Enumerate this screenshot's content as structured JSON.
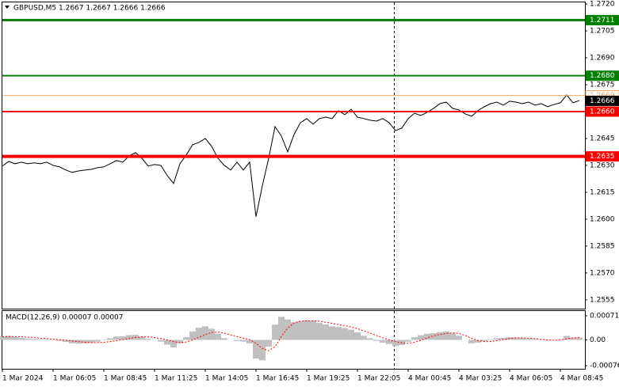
{
  "chart_data": [
    {
      "type": "line",
      "title": "GBPUSD,M5  1.2667 1.2667 1.2666 1.2666",
      "color": "#000000",
      "values": [
        1.26296,
        1.26322,
        1.26309,
        1.26318,
        1.26309,
        1.26314,
        1.26309,
        1.26318,
        1.263,
        1.26292,
        1.26274,
        1.26261,
        1.26269,
        1.26274,
        1.26278,
        1.26287,
        1.26292,
        1.26309,
        1.26327,
        1.26318,
        1.26353,
        1.26371,
        1.2634,
        1.26296,
        1.26305,
        1.263,
        1.26243,
        1.26199,
        1.26309,
        1.26358,
        1.26415,
        1.26428,
        1.2645,
        1.26406,
        1.2634,
        1.263,
        1.26274,
        1.26318,
        1.26274,
        1.26318,
        1.26014,
        1.26186,
        1.2634,
        1.26516,
        1.26464,
        1.26375,
        1.26472,
        1.26538,
        1.26561,
        1.2653,
        1.26561,
        1.26569,
        1.26561,
        1.26605,
        1.26583,
        1.26613,
        1.26569,
        1.26561,
        1.26552,
        1.26547,
        1.26561,
        1.26538,
        1.26494,
        1.26508,
        1.26561,
        1.26591,
        1.26578,
        1.26596,
        1.26618,
        1.26644,
        1.26653,
        1.26618,
        1.26609,
        1.26587,
        1.26574,
        1.26605,
        1.26627,
        1.26644,
        1.26653,
        1.26636,
        1.26658,
        1.26653,
        1.26644,
        1.26653,
        1.26636,
        1.26644,
        1.26627,
        1.2664,
        1.26649,
        1.26693,
        1.26649,
        1.26662
      ],
      "ylim": [
        1.25501,
        1.27209
      ],
      "yticks": [
        {
          "value": 1.272,
          "label": "1.2720"
        },
        1.2705,
        {
          "value": 1.269,
          "label": "1.2690"
        },
        1.2675,
        1.2645,
        {
          "value": 1.263,
          "label": "1.2630"
        },
        1.2615,
        {
          "value": 1.26,
          "label": "1.2600"
        },
        1.2585,
        {
          "value": 1.257,
          "label": "1.2570"
        },
        1.2555
      ],
      "levels": [
        {
          "value": 1.2711,
          "color": "#008000",
          "width": 3,
          "line": true,
          "box": "filled"
        },
        {
          "value": 1.268,
          "label": "1.2680",
          "color": "#008000",
          "width": 2,
          "line": true,
          "box": "filled"
        },
        {
          "value": 1.2669,
          "color": "#f4a460",
          "width": 1,
          "line": true,
          "box": "outline"
        },
        {
          "value": 1.2666,
          "color": "#000000",
          "width": 0,
          "line": false,
          "box": "filled"
        },
        {
          "value": 1.266,
          "label": "1.2660",
          "color": "#ff0000",
          "width": 2,
          "line": true,
          "box": "filled"
        },
        {
          "value": 1.2635,
          "color": "#ff0000",
          "width": 4,
          "line": true,
          "box": "filled"
        }
      ],
      "grid": false
    },
    {
      "type": "macd",
      "title": "MACD(12,26,9) 0.00007 0.00007",
      "series": [
        {
          "color": "#c0c0c0",
          "style": "histogram",
          "values": [
            0.0001,
            0.00012,
            8e-05,
            6e-05,
            4e-05,
            3e-05,
            2e-05,
            1e-05,
            -1e-05,
            -3e-05,
            -6e-05,
            -0.0001,
            -0.00011,
            -0.0001,
            -8e-05,
            -5e-05,
            -1e-05,
            5e-05,
            0.0001,
            0.00011,
            0.00014,
            0.00015,
            0.0001,
            3e-05,
            0,
            -5e-05,
            -0.00014,
            -0.00022,
            -0.0001,
            8e-05,
            0.00025,
            0.00036,
            0.0004,
            0.00033,
            0.00018,
            5e-05,
            0,
            -3e-05,
            -5e-05,
            -0.0001,
            -0.00055,
            -0.0006,
            -0.0002,
            0.00045,
            0.00068,
            0.0006,
            0.00052,
            0.00055,
            0.00058,
            0.00055,
            0.0005,
            0.00046,
            0.0004,
            0.00038,
            0.00035,
            0.0003,
            0.00022,
            0.00012,
            5e-05,
            -3e-05,
            -8e-05,
            -0.00012,
            -0.00018,
            -0.00015,
            -5e-05,
            8e-05,
            0.00014,
            0.00018,
            0.0002,
            0.00023,
            0.00025,
            0.0002,
            0.00012,
            0,
            -0.0001,
            -8e-05,
            -4e-05,
            2e-05,
            5e-05,
            6e-05,
            8e-05,
            7e-05,
            6e-05,
            4e-05,
            3e-05,
            -1e-05,
            -2e-05,
            -1e-05,
            2e-05,
            0.00012,
            7e-05,
            7e-05
          ]
        },
        {
          "color": "#ff0000",
          "style": "dotted",
          "values": [
            9e-05,
            0.0001,
            0.0001,
            9e-05,
            8e-05,
            7e-05,
            5e-05,
            4e-05,
            2e-05,
            1e-05,
            -1e-05,
            -3e-05,
            -5e-05,
            -7e-05,
            -8e-05,
            -8e-05,
            -7e-05,
            -5e-05,
            -2e-05,
            1e-05,
            4e-05,
            7e-05,
            9e-05,
            9e-05,
            7e-05,
            4e-05,
            0,
            -5e-05,
            -8e-05,
            -6e-05,
            0,
            8e-05,
            0.00016,
            0.00022,
            0.00023,
            0.0002,
            0.00015,
            0.0001,
            5e-05,
            1e-05,
            -0.0001,
            -0.00025,
            -0.00032,
            -0.0002,
            0.0001,
            0.00035,
            0.0005,
            0.00055,
            0.00056,
            0.00056,
            0.00055,
            0.00052,
            0.00049,
            0.00045,
            0.00042,
            0.00038,
            0.00033,
            0.00027,
            0.0002,
            0.00013,
            6e-05,
            0,
            -5e-05,
            -9e-05,
            -0.0001,
            -7e-05,
            -1e-05,
            6e-05,
            0.00012,
            0.00016,
            0.00019,
            0.00021,
            0.00019,
            0.00013,
            5e-05,
            -2e-05,
            -5e-05,
            -5e-05,
            -2e-05,
            1e-05,
            4e-05,
            6e-05,
            6e-05,
            5e-05,
            4e-05,
            2e-05,
            0,
            -1e-05,
            0,
            3e-05,
            6e-05,
            7e-05
          ]
        }
      ],
      "ylim": [
        -0.00085,
        0.00085
      ],
      "yticks": [
        0.00071,
        {
          "value": 0,
          "label": "0.00"
        },
        -0.00076
      ],
      "x_tick_labels": [
        "1 Mar 2024",
        "1 Mar 06:05",
        "1 Mar 08:45",
        "1 Mar 11:25",
        "1 Mar 14:05",
        "1 Mar 16:45",
        "1 Mar 19:25",
        "1 Mar 22:05",
        "4 Mar 00:45",
        "4 Mar 03:25",
        "4 Mar 06:05",
        "4 Mar 08:45"
      ]
    }
  ]
}
